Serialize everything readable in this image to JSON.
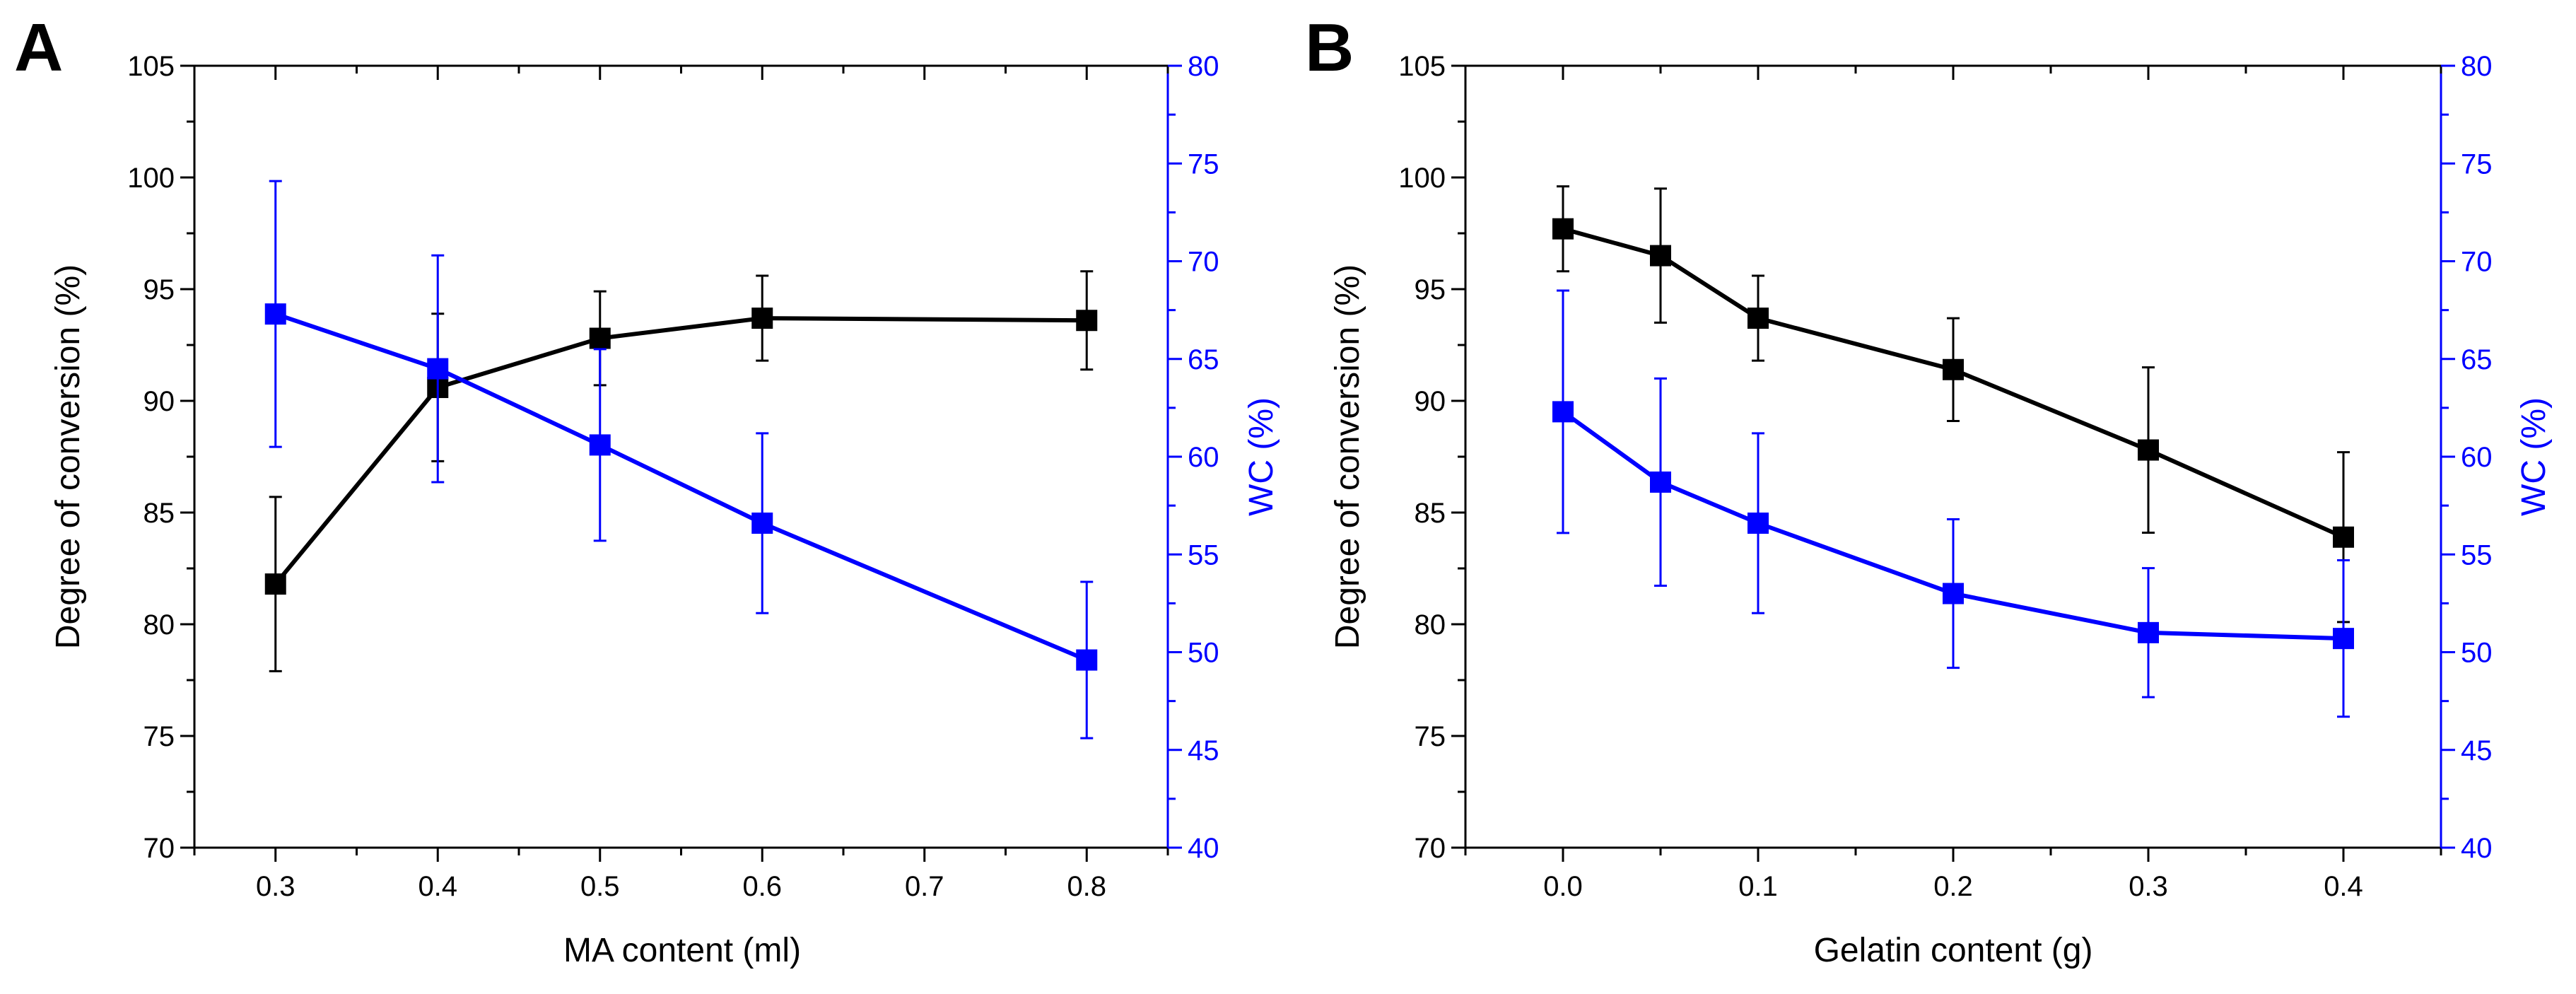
{
  "colors": {
    "doc": "#000000",
    "wc": "#0000FF"
  },
  "chart_data": [
    {
      "type": "line",
      "panel_label": "A",
      "xlabel": "MA content (ml)",
      "ylabel": "Degree of conversion (%)",
      "y2label": "WC (%)",
      "xlim": [
        0.25,
        0.85
      ],
      "ylim": [
        70,
        105
      ],
      "y2lim": [
        40,
        80
      ],
      "xticks": [
        0.3,
        0.4,
        0.5,
        0.6,
        0.7,
        0.8
      ],
      "xtick_labels": [
        "0.3",
        "0.4",
        "0.5",
        "0.6",
        "0.7",
        "0.8"
      ],
      "yticks": [
        70,
        75,
        80,
        85,
        90,
        95,
        100,
        105
      ],
      "y2ticks": [
        40,
        45,
        50,
        55,
        60,
        65,
        70,
        75,
        80
      ],
      "x": [
        0.3,
        0.4,
        0.5,
        0.6,
        0.8
      ],
      "series": [
        {
          "name": "Degree of conversion",
          "axis": "left",
          "values": [
            81.8,
            90.6,
            92.8,
            93.7,
            93.6
          ],
          "errors": [
            3.9,
            3.3,
            2.1,
            1.9,
            2.2
          ]
        },
        {
          "name": "WC",
          "axis": "right",
          "values": [
            67.3,
            64.5,
            60.6,
            56.6,
            49.6
          ],
          "errors": [
            6.8,
            5.8,
            4.9,
            4.6,
            4.0
          ]
        }
      ]
    },
    {
      "type": "line",
      "panel_label": "B",
      "xlabel": "Gelatin content (g)",
      "ylabel": "Degree of conversion (%)",
      "y2label": "WC (%)",
      "xlim": [
        -0.05,
        0.45
      ],
      "ylim": [
        70,
        105
      ],
      "y2lim": [
        40,
        80
      ],
      "xticks": [
        0.0,
        0.1,
        0.2,
        0.3,
        0.4
      ],
      "xtick_labels": [
        "0.0",
        "0.1",
        "0.2",
        "0.3",
        "0.4"
      ],
      "yticks": [
        70,
        75,
        80,
        85,
        90,
        95,
        100,
        105
      ],
      "y2ticks": [
        40,
        45,
        50,
        55,
        60,
        65,
        70,
        75,
        80
      ],
      "x": [
        0.0,
        0.05,
        0.1,
        0.2,
        0.3,
        0.4
      ],
      "series": [
        {
          "name": "Degree of conversion",
          "axis": "left",
          "values": [
            97.7,
            96.5,
            93.7,
            91.4,
            87.8,
            83.9
          ],
          "errors": [
            1.9,
            3.0,
            1.9,
            2.3,
            3.7,
            3.8
          ]
        },
        {
          "name": "WC",
          "axis": "right",
          "values": [
            62.3,
            58.7,
            56.6,
            53.0,
            51.0,
            50.7
          ],
          "errors": [
            6.2,
            5.3,
            4.6,
            3.8,
            3.3,
            4.0
          ]
        }
      ]
    }
  ]
}
